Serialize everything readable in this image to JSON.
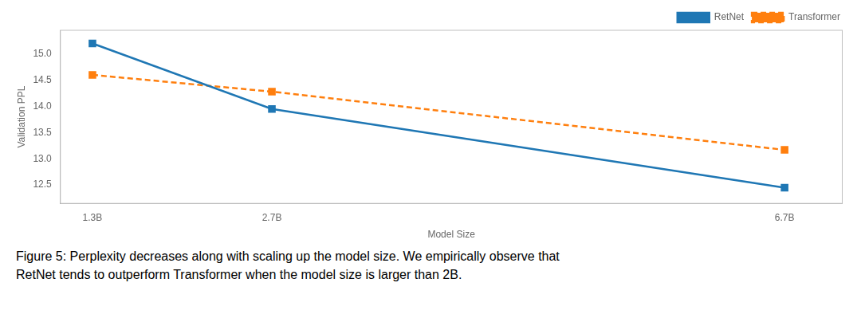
{
  "chart_data": {
    "type": "line",
    "xlabel": "Model Size",
    "ylabel": "Validation PPL",
    "x": [
      1.3,
      2.7,
      6.7
    ],
    "series": [
      {
        "name": "RetNet",
        "color": "#1f77b4",
        "values": [
          15.2,
          13.95,
          12.45
        ],
        "marker": "square",
        "line_style": "solid"
      },
      {
        "name": "Transformer",
        "color": "#ff7f0e",
        "values": [
          14.6,
          14.28,
          13.17
        ],
        "marker": "square",
        "line_style": "dashed"
      }
    ],
    "xlim": [
      1.05,
      7.15
    ],
    "xticks": [
      {
        "value": 1.3,
        "label": "1.3B"
      },
      {
        "value": 2.7,
        "label": "2.7B"
      },
      {
        "value": 6.7,
        "label": "6.7B"
      }
    ],
    "ylim": [
      12.15,
      15.45
    ],
    "yticks": [
      12.5,
      {
        "value": 13,
        "label": "13.0"
      },
      13.5,
      {
        "value": 14,
        "label": "14.0"
      },
      14.5,
      {
        "value": 15,
        "label": "15.0"
      }
    ],
    "annotations": [
      "Figure 5:  Perplexity decreases along with scaling up the model size.  We empirically observe that",
      "RetNet tends to outperform Transformer when the model size is larger than 2B."
    ],
    "legend": "upper right",
    "grid": false
  }
}
